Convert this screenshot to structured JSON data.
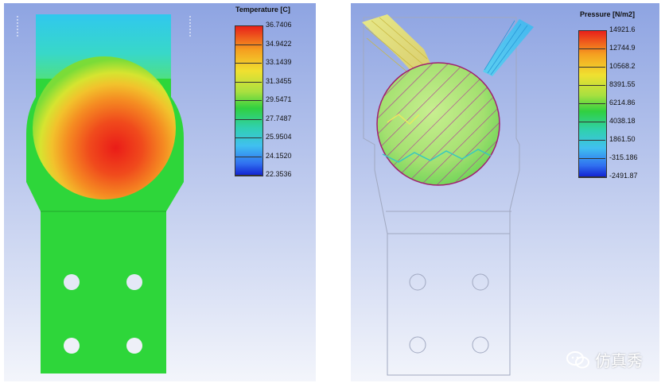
{
  "left_panel": {
    "legend_title": "Temperature [C]",
    "ticks": [
      "36.7406",
      "34.9422",
      "33.1439",
      "31.3455",
      "29.5471",
      "27.7487",
      "25.9504",
      "24.1520",
      "22.3536"
    ]
  },
  "right_panel": {
    "legend_title": "Pressure [N/m2]",
    "ticks": [
      "14921.6",
      "12744.9",
      "10568.2",
      "8391.55",
      "6214.86",
      "4038.18",
      "1861.50",
      "-315.186",
      "-2491.87"
    ]
  },
  "watermark": {
    "text": "仿真秀",
    "icon": "wechat-icon"
  },
  "colors": {
    "background_top": "#8fa6e2",
    "background_bottom": "#f2f4fb",
    "solid_green": "#2ed63a",
    "hot_red": "#e8201a"
  }
}
